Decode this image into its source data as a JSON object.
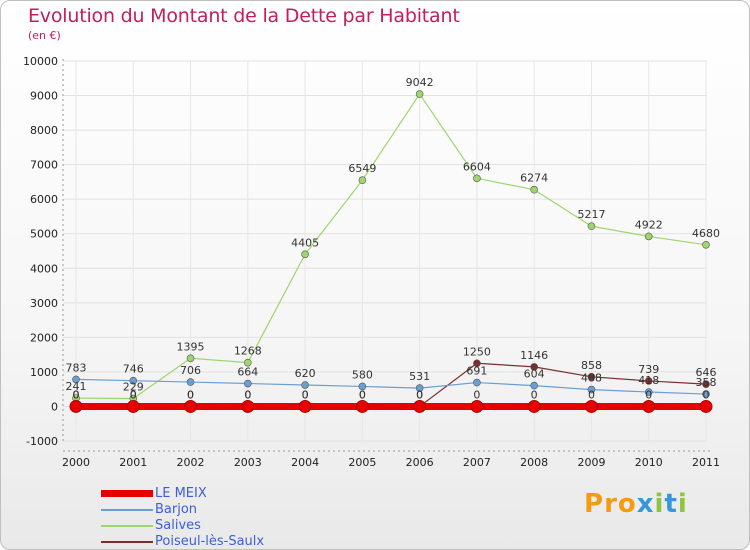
{
  "header": {
    "title": "Evolution du Montant de la Dette par Habitant",
    "subtitle": "(en €)"
  },
  "logo": {
    "letters": [
      "P",
      "r",
      "o",
      "x",
      "i",
      "t",
      "i"
    ],
    "colors": [
      "#f39c12",
      "#f39c12",
      "#f39c12",
      "#3498db",
      "#8cc63f",
      "#3498db",
      "#8cc63f"
    ]
  },
  "chart_data": {
    "type": "line",
    "title": "Evolution du Montant de la Dette par Habitant",
    "subtitle": "(en €)",
    "x": [
      "2000",
      "2001",
      "2002",
      "2003",
      "2004",
      "2005",
      "2006",
      "2007",
      "2008",
      "2009",
      "2010",
      "2011"
    ],
    "ylim": [
      -1000,
      10000
    ],
    "yticks": [
      "-1000",
      "0",
      "1000",
      "2000",
      "3000",
      "4000",
      "5000",
      "6000",
      "7000",
      "8000",
      "9000",
      "10000"
    ],
    "legend_position": "bottom-left",
    "series": [
      {
        "name": "LE MEIX",
        "color": "#e60000",
        "values": [
          0,
          0,
          0,
          0,
          0,
          0,
          0,
          0,
          0,
          0,
          0,
          0
        ],
        "labels": [
          "0",
          "0",
          "0",
          "0",
          "0",
          "0",
          "0",
          "0",
          "0",
          "0",
          "0",
          "0"
        ]
      },
      {
        "name": "Barjon",
        "color": "#6a9fd4",
        "values": [
          783,
          746,
          706,
          664,
          620,
          580,
          531,
          691,
          604,
          488,
          418,
          358
        ],
        "labels": [
          "783",
          "746",
          "706",
          "664",
          "620",
          "580",
          "531",
          "691",
          "604",
          "488",
          "418",
          "358"
        ]
      },
      {
        "name": "Salives",
        "color": "#9ed66e",
        "values": [
          241,
          229,
          1395,
          1268,
          4405,
          6549,
          9042,
          6604,
          6274,
          5217,
          4922,
          4680
        ],
        "labels": [
          "241",
          "229",
          "1395",
          "1268",
          "4405",
          "6549",
          "9042",
          "6604",
          "6274",
          "5217",
          "4922",
          "4680"
        ]
      },
      {
        "name": "Poiseul-lès-Saulx",
        "color": "#7a2e2e",
        "values": [
          0,
          0,
          0,
          0,
          0,
          0,
          0,
          1250,
          1146,
          858,
          739,
          646
        ],
        "labels": [
          "0",
          "0",
          "0",
          "0",
          "0",
          "0",
          "0",
          "1250",
          "1146",
          "858",
          "739",
          "646"
        ]
      }
    ]
  }
}
